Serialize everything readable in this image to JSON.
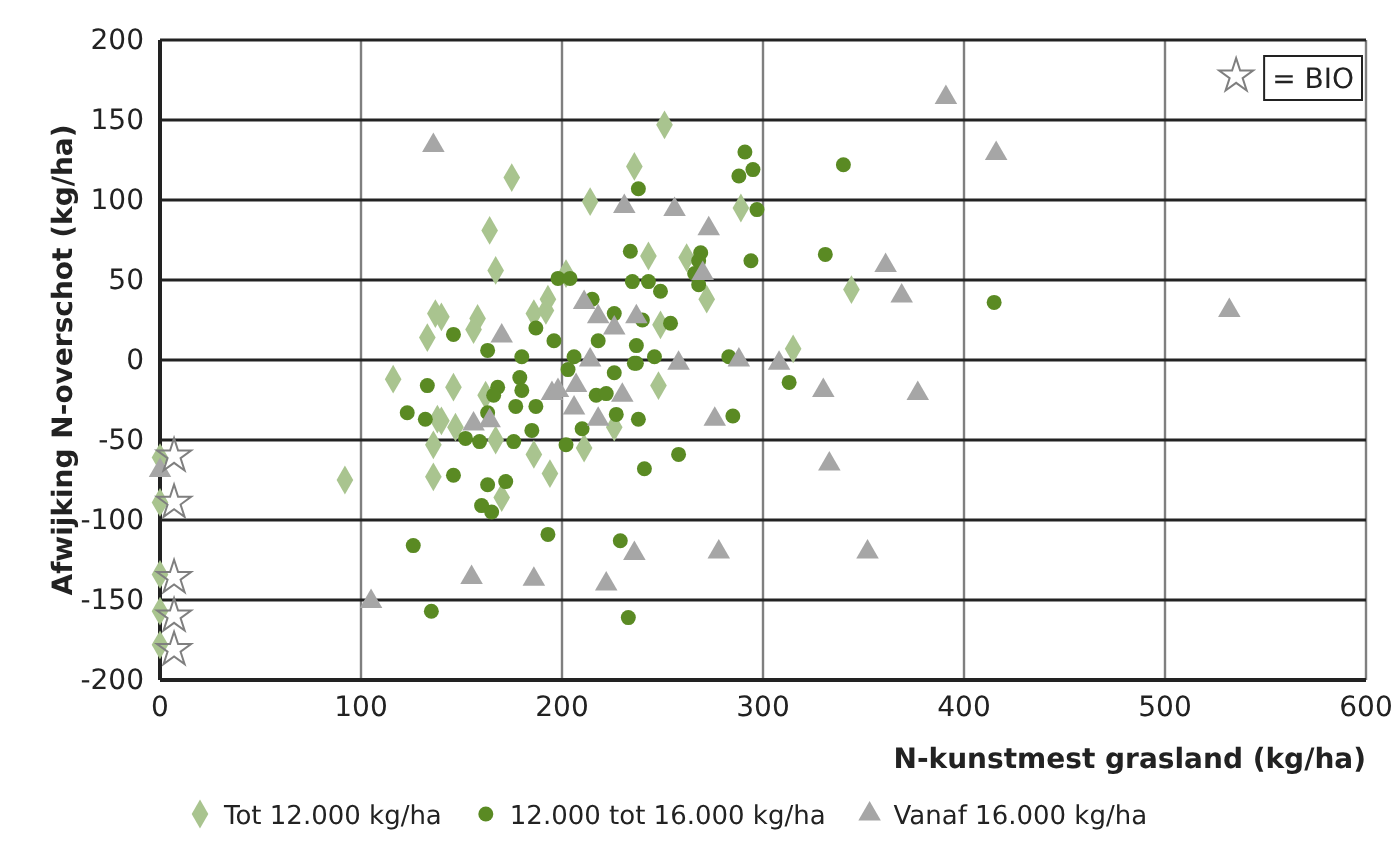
{
  "chart_data": {
    "type": "scatter",
    "xlabel": "N-kunstmest grasland (kg/ha)",
    "ylabel": "Afwijking N-overschot (kg/ha)",
    "xlim": [
      0,
      600
    ],
    "xticks": [
      0,
      100,
      200,
      300,
      400,
      500,
      600
    ],
    "ylim": [
      -200,
      200
    ],
    "yticks": [
      -200,
      -150,
      -100,
      -50,
      0,
      50,
      100,
      150,
      200
    ],
    "grid": true,
    "legend": "bottom",
    "series": [
      {
        "name": "Tot 12.000 kg/ha",
        "color": "#a9c48f",
        "marker": "diamond",
        "x": [
          0,
          0,
          0,
          0,
          0,
          92,
          116,
          133,
          137,
          136,
          136,
          138,
          175,
          214,
          164,
          167,
          202,
          193,
          186,
          192,
          140,
          158,
          156,
          146,
          162,
          140,
          147,
          167,
          211,
          186,
          194,
          170,
          226,
          251,
          236,
          289,
          243,
          262,
          272,
          344,
          249,
          315,
          248
        ],
        "values": [
          -61,
          -89,
          -134,
          -157,
          -178,
          -75,
          -12,
          14,
          29,
          -53,
          -73,
          -37,
          114,
          99,
          81,
          56,
          54,
          38,
          29,
          31,
          27,
          26,
          19,
          -17,
          -22,
          -38,
          -42,
          -50,
          -55,
          -59,
          -71,
          -86,
          -42,
          147,
          121,
          95,
          65,
          64,
          38,
          44,
          22,
          7,
          -16
        ]
      },
      {
        "name": "12.000 tot 16.000 kg/ha",
        "color": "#5a8a23",
        "marker": "circle",
        "x": [
          133,
          123,
          132,
          126,
          135,
          238,
          234,
          198,
          204,
          235,
          215,
          226,
          146,
          187,
          196,
          218,
          163,
          180,
          206,
          203,
          226,
          236,
          179,
          180,
          168,
          166,
          217,
          222,
          177,
          187,
          227,
          163,
          185,
          210,
          152,
          159,
          176,
          202,
          146,
          163,
          172,
          160,
          165,
          193,
          229,
          233,
          340,
          291,
          295,
          288,
          297,
          269,
          268,
          266,
          268,
          294,
          331,
          415,
          243,
          249,
          240,
          254,
          237,
          237,
          246,
          283,
          313,
          238,
          285,
          258,
          241
        ],
        "values": [
          -16,
          -33,
          -37,
          -116,
          -157,
          107,
          68,
          51,
          51,
          49,
          38,
          29,
          16,
          20,
          12,
          12,
          6,
          2,
          2,
          -6,
          -8,
          -2,
          -11,
          -19,
          -17,
          -22,
          -22,
          -21,
          -29,
          -29,
          -34,
          -33,
          -44,
          -43,
          -49,
          -51,
          -51,
          -53,
          -72,
          -78,
          -76,
          -91,
          -95,
          -109,
          -113,
          -161,
          122,
          130,
          119,
          115,
          94,
          67,
          62,
          54,
          47,
          62,
          66,
          36,
          49,
          43,
          25,
          23,
          9,
          -2,
          2,
          2,
          -14,
          -37,
          -35,
          -59,
          -68
        ]
      },
      {
        "name": "Vanaf 16.000 kg/ha",
        "color": "#a6a6a6",
        "marker": "triangle",
        "x": [
          0,
          105,
          136,
          231,
          211,
          218,
          226,
          170,
          214,
          195,
          198,
          207,
          206,
          218,
          156,
          164,
          155,
          186,
          222,
          236,
          391,
          416,
          256,
          273,
          270,
          361,
          369,
          532,
          237,
          258,
          288,
          308,
          330,
          377,
          230,
          276,
          333,
          278,
          352
        ],
        "values": [
          -69,
          -151,
          134,
          96,
          36,
          27,
          20,
          15,
          0,
          -21,
          -19,
          -16,
          -30,
          -37,
          -40,
          -38,
          -136,
          -137,
          -140,
          -121,
          164,
          129,
          94,
          82,
          54,
          59,
          40,
          31,
          27,
          -2,
          0,
          -2,
          -19,
          -21,
          -22,
          -37,
          -65,
          -120,
          -120
        ]
      },
      {
        "name": "= BIO",
        "color": "#7f7f7f",
        "marker": "star",
        "x": [
          7,
          7,
          7,
          7,
          7
        ],
        "values": [
          -60,
          -89,
          -136,
          -160,
          -181
        ]
      }
    ]
  }
}
